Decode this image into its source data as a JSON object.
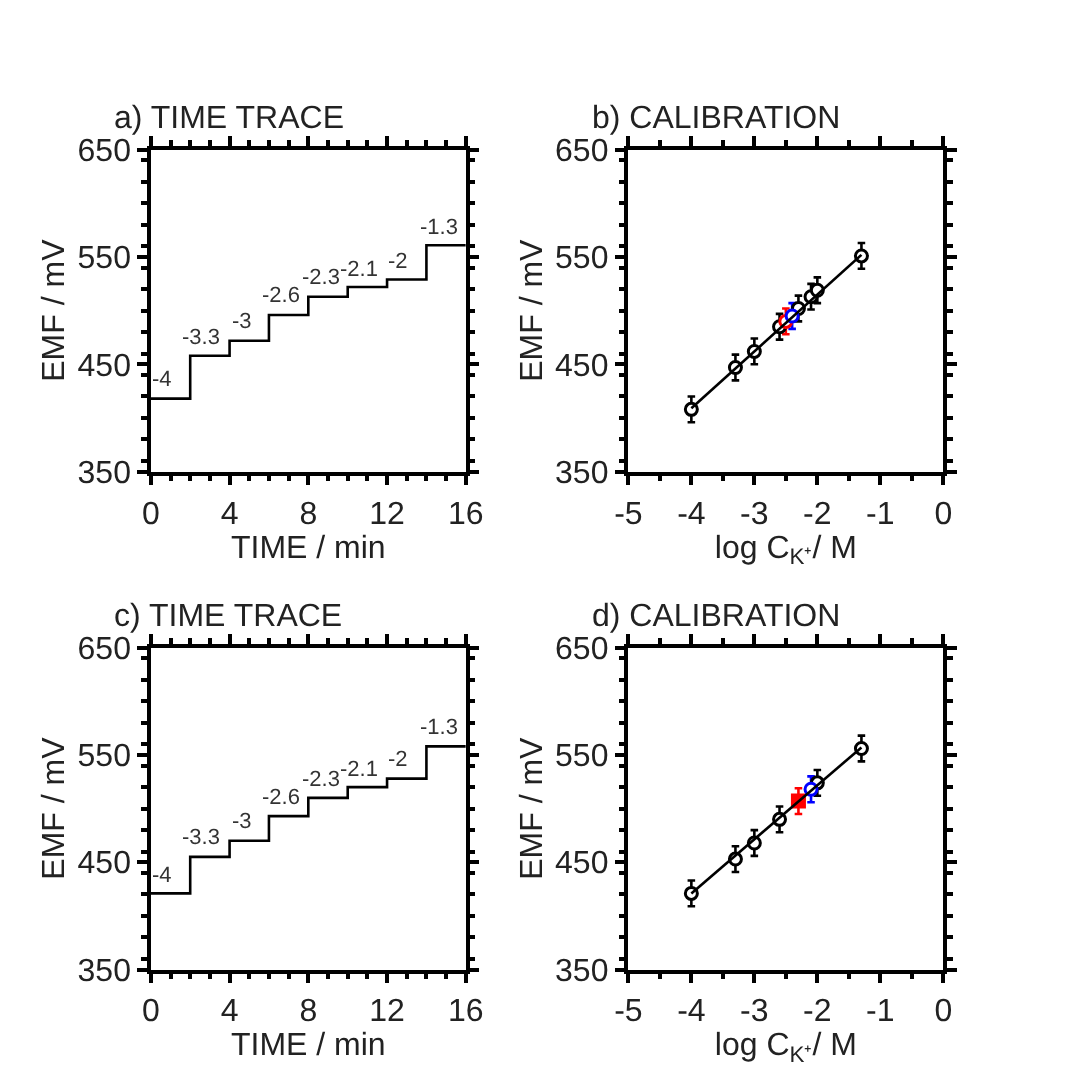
{
  "chart_data": [
    {
      "type": "step",
      "title": "a) TIME TRACE",
      "xlabel": "TIME / min",
      "ylabel": "EMF / mV",
      "x": [
        0,
        2,
        4,
        6,
        8,
        10,
        12,
        14,
        16
      ],
      "series": [
        {
          "color": "#000000",
          "values": [
            418,
            458,
            472,
            496,
            513,
            522,
            529,
            561,
            561
          ]
        }
      ],
      "xlim": [
        0,
        16
      ],
      "xticks": [
        0,
        4,
        8,
        12,
        16
      ],
      "ylim": [
        350,
        650
      ],
      "yticks": [
        350,
        450,
        550,
        650
      ],
      "grid": false,
      "marker": "none",
      "annotations": [
        {
          "text": "-4",
          "x": 1,
          "y": 418
        },
        {
          "text": "-3.3",
          "x": 3,
          "y": 458
        },
        {
          "text": "-3",
          "x": 5,
          "y": 472
        },
        {
          "text": "-2.6",
          "x": 7,
          "y": 496
        },
        {
          "text": "-2.3",
          "x": 9,
          "y": 513
        },
        {
          "text": "-2.1",
          "x": 11,
          "y": 522
        },
        {
          "text": "-2",
          "x": 13,
          "y": 529
        },
        {
          "text": "-1.3",
          "x": 15,
          "y": 561
        }
      ]
    },
    {
      "type": "scatter",
      "title": "b) CALIBRATION",
      "xlabel": "log C$_{K⁺}$/ M",
      "ylabel": "EMF / mV",
      "series": [
        {
          "color": "#000000",
          "x": [
            -4,
            -3.3,
            -3,
            -2.6,
            -2.3,
            -2.1,
            -2,
            -1.3
          ],
          "values": [
            408,
            447,
            462,
            485,
            502,
            513,
            519,
            551
          ],
          "errors": [
            12,
            12,
            12,
            12,
            12,
            12,
            12,
            12
          ],
          "marker": "circle"
        },
        {
          "color": "#ff0000",
          "x": [
            -2.5
          ],
          "values": [
            490
          ],
          "errors": [
            12
          ],
          "marker": "circle"
        },
        {
          "color": "#0000ff",
          "x": [
            -2.4
          ],
          "values": [
            495
          ],
          "errors": [
            12
          ],
          "marker": "circle"
        },
        {
          "type": "line",
          "color": "#000000",
          "x": [
            -4,
            -1.3
          ],
          "values": [
            409,
            552
          ],
          "marker": "none"
        }
      ],
      "xlim": [
        -5,
        0
      ],
      "xticks": [
        -5,
        -4,
        -3,
        -2,
        -1,
        0
      ],
      "ylim": [
        350,
        650
      ],
      "yticks": [
        350,
        450,
        550,
        650
      ],
      "grid": false
    },
    {
      "type": "step",
      "title": "c) TIME TRACE",
      "xlabel": "TIME / min",
      "ylabel": "EMF / mV",
      "x": [
        0,
        2,
        4,
        6,
        8,
        10,
        12,
        14,
        16
      ],
      "series": [
        {
          "color": "#000000",
          "values": [
            421,
            455,
            470,
            493,
            510,
            520,
            528,
            558,
            558
          ]
        }
      ],
      "xlim": [
        0,
        16
      ],
      "xticks": [
        0,
        4,
        8,
        12,
        16
      ],
      "ylim": [
        350,
        650
      ],
      "yticks": [
        350,
        450,
        550,
        650
      ],
      "grid": false,
      "marker": "none",
      "annotations": [
        {
          "text": "-4",
          "x": 1,
          "y": 421
        },
        {
          "text": "-3.3",
          "x": 3,
          "y": 455
        },
        {
          "text": "-3",
          "x": 5,
          "y": 470
        },
        {
          "text": "-2.6",
          "x": 7,
          "y": 493
        },
        {
          "text": "-2.3",
          "x": 9,
          "y": 510
        },
        {
          "text": "-2.1",
          "x": 11,
          "y": 520
        },
        {
          "text": "-2",
          "x": 13,
          "y": 528
        },
        {
          "text": "-1.3",
          "x": 15,
          "y": 558
        }
      ]
    },
    {
      "type": "scatter",
      "title": "d) CALIBRATION",
      "xlabel": "log C$_{K⁺}$/ M",
      "ylabel": "EMF / mV",
      "series": [
        {
          "color": "#000000",
          "x": [
            -4,
            -3.3,
            -3,
            -2.6,
            -2,
            -1.3
          ],
          "values": [
            421,
            453,
            468,
            490,
            524,
            556
          ],
          "errors": [
            12,
            12,
            12,
            12,
            12,
            12
          ],
          "marker": "circle"
        },
        {
          "color": "#ff0000",
          "x": [
            -2.3
          ],
          "values": [
            507
          ],
          "errors": [
            12
          ],
          "marker": "square"
        },
        {
          "color": "#0000ff",
          "x": [
            -2.1
          ],
          "values": [
            518
          ],
          "errors": [
            12
          ],
          "marker": "circle"
        },
        {
          "type": "line",
          "color": "#000000",
          "x": [
            -4,
            -1.3
          ],
          "values": [
            421,
            557
          ],
          "marker": "none"
        }
      ],
      "xlim": [
        -5,
        0
      ],
      "xticks": [
        -5,
        -4,
        -3,
        -2,
        -1,
        0
      ],
      "ylim": [
        350,
        650
      ],
      "yticks": [
        350,
        450,
        550,
        650
      ],
      "grid": false
    }
  ]
}
